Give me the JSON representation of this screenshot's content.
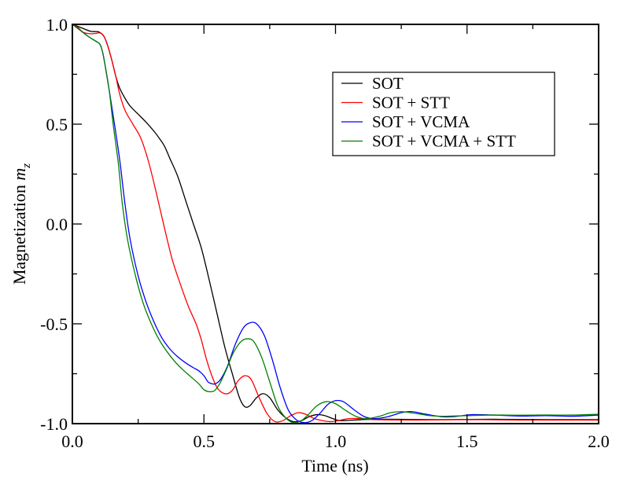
{
  "chart_data": {
    "type": "line",
    "title": "",
    "xlabel": "Time (ns)",
    "ylabel": "Magnetization",
    "ylabel_symbol": "m",
    "ylabel_subscript": "z",
    "xlim": [
      0.0,
      2.0
    ],
    "ylim": [
      -1.0,
      1.0
    ],
    "x_ticks": [
      0.0,
      0.5,
      1.0,
      1.5,
      2.0
    ],
    "x_tick_labels": [
      "0.0",
      "0.5",
      "1.0",
      "1.5",
      "2.0"
    ],
    "x_minor_ticks": [
      0.25,
      0.75,
      1.25,
      1.75
    ],
    "y_ticks": [
      -1.0,
      -0.5,
      0.0,
      0.5,
      1.0
    ],
    "y_tick_labels": [
      "-1.0",
      "-0.5",
      "0.0",
      "0.5",
      "1.0"
    ],
    "y_minor_ticks": [
      -0.75,
      -0.25,
      0.25,
      0.75
    ],
    "grid": false,
    "legend_position": "top-right",
    "series": [
      {
        "name": "SOT",
        "color": "#000000",
        "points": [
          [
            0.0,
            1.0
          ],
          [
            0.04,
            0.98
          ],
          [
            0.07,
            0.965
          ],
          [
            0.1,
            0.962
          ],
          [
            0.12,
            0.94
          ],
          [
            0.135,
            0.89
          ],
          [
            0.15,
            0.82
          ],
          [
            0.165,
            0.74
          ],
          [
            0.18,
            0.68
          ],
          [
            0.2,
            0.63
          ],
          [
            0.22,
            0.59
          ],
          [
            0.25,
            0.55
          ],
          [
            0.28,
            0.51
          ],
          [
            0.31,
            0.465
          ],
          [
            0.33,
            0.43
          ],
          [
            0.35,
            0.39
          ],
          [
            0.37,
            0.33
          ],
          [
            0.4,
            0.24
          ],
          [
            0.43,
            0.12
          ],
          [
            0.46,
            0.0
          ],
          [
            0.49,
            -0.12
          ],
          [
            0.52,
            -0.28
          ],
          [
            0.55,
            -0.45
          ],
          [
            0.58,
            -0.62
          ],
          [
            0.61,
            -0.76
          ],
          [
            0.635,
            -0.87
          ],
          [
            0.655,
            -0.915
          ],
          [
            0.675,
            -0.91
          ],
          [
            0.7,
            -0.87
          ],
          [
            0.725,
            -0.85
          ],
          [
            0.75,
            -0.87
          ],
          [
            0.78,
            -0.93
          ],
          [
            0.81,
            -0.97
          ],
          [
            0.84,
            -0.99
          ],
          [
            0.87,
            -0.985
          ],
          [
            0.9,
            -0.965
          ],
          [
            0.93,
            -0.955
          ],
          [
            0.96,
            -0.96
          ],
          [
            0.99,
            -0.975
          ],
          [
            1.02,
            -0.985
          ],
          [
            1.1,
            -0.98
          ],
          [
            1.2,
            -0.978
          ],
          [
            1.4,
            -0.98
          ],
          [
            1.6,
            -0.978
          ],
          [
            1.8,
            -0.98
          ],
          [
            2.0,
            -0.98
          ]
        ]
      },
      {
        "name": "SOT + STT",
        "color": "#ff0000",
        "points": [
          [
            0.0,
            1.0
          ],
          [
            0.02,
            0.985
          ],
          [
            0.042,
            0.96
          ],
          [
            0.07,
            0.953
          ],
          [
            0.09,
            0.955
          ],
          [
            0.105,
            0.957
          ],
          [
            0.12,
            0.94
          ],
          [
            0.135,
            0.89
          ],
          [
            0.15,
            0.82
          ],
          [
            0.165,
            0.74
          ],
          [
            0.18,
            0.65
          ],
          [
            0.2,
            0.57
          ],
          [
            0.23,
            0.5
          ],
          [
            0.26,
            0.43
          ],
          [
            0.29,
            0.31
          ],
          [
            0.32,
            0.15
          ],
          [
            0.35,
            -0.02
          ],
          [
            0.38,
            -0.18
          ],
          [
            0.41,
            -0.3
          ],
          [
            0.44,
            -0.41
          ],
          [
            0.47,
            -0.5
          ],
          [
            0.49,
            -0.58
          ],
          [
            0.51,
            -0.68
          ],
          [
            0.53,
            -0.76
          ],
          [
            0.55,
            -0.82
          ],
          [
            0.57,
            -0.845
          ],
          [
            0.59,
            -0.85
          ],
          [
            0.61,
            -0.83
          ],
          [
            0.63,
            -0.785
          ],
          [
            0.655,
            -0.76
          ],
          [
            0.68,
            -0.78
          ],
          [
            0.71,
            -0.87
          ],
          [
            0.74,
            -0.95
          ],
          [
            0.77,
            -0.99
          ],
          [
            0.8,
            -0.985
          ],
          [
            0.83,
            -0.96
          ],
          [
            0.86,
            -0.945
          ],
          [
            0.89,
            -0.955
          ],
          [
            0.92,
            -0.975
          ],
          [
            0.95,
            -0.985
          ],
          [
            0.98,
            -0.99
          ],
          [
            1.01,
            -0.985
          ],
          [
            1.05,
            -0.975
          ],
          [
            1.1,
            -0.975
          ],
          [
            1.15,
            -0.98
          ],
          [
            1.3,
            -0.982
          ],
          [
            1.5,
            -0.98
          ],
          [
            1.7,
            -0.982
          ],
          [
            2.0,
            -0.982
          ]
        ]
      },
      {
        "name": "SOT + VCMA",
        "color": "#0000ff",
        "points": [
          [
            0.0,
            1.0
          ],
          [
            0.03,
            0.97
          ],
          [
            0.06,
            0.94
          ],
          [
            0.09,
            0.915
          ],
          [
            0.105,
            0.9
          ],
          [
            0.115,
            0.86
          ],
          [
            0.125,
            0.79
          ],
          [
            0.14,
            0.67
          ],
          [
            0.16,
            0.5
          ],
          [
            0.18,
            0.32
          ],
          [
            0.2,
            0.1
          ],
          [
            0.22,
            -0.08
          ],
          [
            0.25,
            -0.26
          ],
          [
            0.28,
            -0.39
          ],
          [
            0.31,
            -0.49
          ],
          [
            0.34,
            -0.57
          ],
          [
            0.37,
            -0.625
          ],
          [
            0.4,
            -0.665
          ],
          [
            0.43,
            -0.695
          ],
          [
            0.46,
            -0.72
          ],
          [
            0.48,
            -0.735
          ],
          [
            0.5,
            -0.76
          ],
          [
            0.515,
            -0.79
          ],
          [
            0.53,
            -0.8
          ],
          [
            0.545,
            -0.8
          ],
          [
            0.565,
            -0.775
          ],
          [
            0.59,
            -0.71
          ],
          [
            0.62,
            -0.6
          ],
          [
            0.65,
            -0.52
          ],
          [
            0.675,
            -0.495
          ],
          [
            0.7,
            -0.5
          ],
          [
            0.73,
            -0.56
          ],
          [
            0.76,
            -0.68
          ],
          [
            0.79,
            -0.82
          ],
          [
            0.82,
            -0.93
          ],
          [
            0.85,
            -0.98
          ],
          [
            0.88,
            -0.995
          ],
          [
            0.91,
            -0.985
          ],
          [
            0.94,
            -0.95
          ],
          [
            0.97,
            -0.905
          ],
          [
            1.0,
            -0.885
          ],
          [
            1.03,
            -0.89
          ],
          [
            1.07,
            -0.93
          ],
          [
            1.11,
            -0.965
          ],
          [
            1.15,
            -0.975
          ],
          [
            1.2,
            -0.965
          ],
          [
            1.25,
            -0.945
          ],
          [
            1.29,
            -0.94
          ],
          [
            1.34,
            -0.952
          ],
          [
            1.4,
            -0.965
          ],
          [
            1.45,
            -0.965
          ],
          [
            1.52,
            -0.955
          ],
          [
            1.6,
            -0.957
          ],
          [
            1.7,
            -0.962
          ],
          [
            1.8,
            -0.96
          ],
          [
            1.9,
            -0.963
          ],
          [
            2.0,
            -0.957
          ]
        ]
      },
      {
        "name": "SOT + VCMA + STT",
        "color": "#008000",
        "points": [
          [
            0.0,
            1.0
          ],
          [
            0.03,
            0.97
          ],
          [
            0.06,
            0.94
          ],
          [
            0.09,
            0.915
          ],
          [
            0.105,
            0.9
          ],
          [
            0.115,
            0.86
          ],
          [
            0.125,
            0.79
          ],
          [
            0.14,
            0.67
          ],
          [
            0.155,
            0.5
          ],
          [
            0.175,
            0.3
          ],
          [
            0.19,
            0.1
          ],
          [
            0.21,
            -0.08
          ],
          [
            0.24,
            -0.26
          ],
          [
            0.27,
            -0.4
          ],
          [
            0.3,
            -0.5
          ],
          [
            0.33,
            -0.58
          ],
          [
            0.36,
            -0.64
          ],
          [
            0.39,
            -0.69
          ],
          [
            0.42,
            -0.73
          ],
          [
            0.45,
            -0.765
          ],
          [
            0.48,
            -0.8
          ],
          [
            0.5,
            -0.83
          ],
          [
            0.52,
            -0.84
          ],
          [
            0.54,
            -0.835
          ],
          [
            0.56,
            -0.8
          ],
          [
            0.585,
            -0.73
          ],
          [
            0.61,
            -0.65
          ],
          [
            0.64,
            -0.59
          ],
          [
            0.665,
            -0.575
          ],
          [
            0.69,
            -0.59
          ],
          [
            0.72,
            -0.67
          ],
          [
            0.75,
            -0.79
          ],
          [
            0.78,
            -0.91
          ],
          [
            0.81,
            -0.97
          ],
          [
            0.84,
            -0.995
          ],
          [
            0.87,
            -0.985
          ],
          [
            0.9,
            -0.95
          ],
          [
            0.93,
            -0.91
          ],
          [
            0.965,
            -0.89
          ],
          [
            1.0,
            -0.9
          ],
          [
            1.04,
            -0.935
          ],
          [
            1.08,
            -0.965
          ],
          [
            1.12,
            -0.975
          ],
          [
            1.17,
            -0.962
          ],
          [
            1.21,
            -0.945
          ],
          [
            1.25,
            -0.94
          ],
          [
            1.3,
            -0.948
          ],
          [
            1.36,
            -0.96
          ],
          [
            1.42,
            -0.963
          ],
          [
            1.5,
            -0.96
          ],
          [
            1.6,
            -0.957
          ],
          [
            1.7,
            -0.958
          ],
          [
            1.8,
            -0.957
          ],
          [
            1.9,
            -0.957
          ],
          [
            2.0,
            -0.953
          ]
        ]
      }
    ]
  }
}
